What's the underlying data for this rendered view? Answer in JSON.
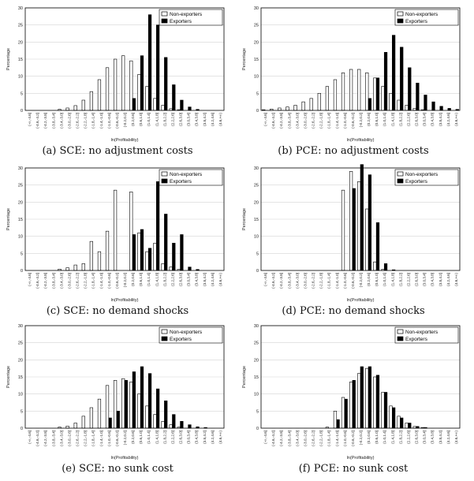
{
  "legend": {
    "nonexporters": "Non-exporters",
    "exporters": "Exporters"
  },
  "xlabel": "ln(Profitability)",
  "ylabel": "Percentage",
  "chart_data": [
    {
      "type": "bar",
      "caption": "(a) SCE: no adjustment costs",
      "categories": [
        "(-∞,-4.6]",
        "(-4.6,-4.2]",
        "(-4.2,-3.8]",
        "(-3.8,-3.4]",
        "(-3.4,-3.0]",
        "(-3.0,-2.6]",
        "(-2.6,-2.2]",
        "(-2.2,-1.8]",
        "(-1.8,-1.4]",
        "(-1.4,-1.0]",
        "(-1.0,-0.6]",
        "(-0.6,-0.2]",
        "(-0.2,0.2]",
        "(0.2,0.6]",
        "(0.6,1.0]",
        "(1.0,1.4]",
        "(1.4,1.8]",
        "(1.8,2.2]",
        "(2.2,2.6]",
        "(2.6,3.0]",
        "(3.0,3.4]",
        "(3.4,3.8]",
        "(3.8,4.2]",
        "(4.2,4.6]",
        "(4.6,+∞)"
      ],
      "ylim": [
        0,
        30
      ],
      "legend_position": "top-right",
      "series": [
        {
          "name": "Non-exporters",
          "values": [
            0,
            0,
            0,
            0,
            0.3,
            0.7,
            1.4,
            3,
            5.5,
            9,
            12.5,
            15,
            16,
            14.5,
            10.5,
            7,
            3.5,
            1.5,
            0.5,
            0.2,
            0,
            0,
            0,
            0,
            0
          ]
        },
        {
          "name": "Exporters",
          "values": [
            0,
            0,
            0,
            0,
            0,
            0,
            0,
            0,
            0,
            0,
            0,
            0,
            0,
            3.5,
            16,
            28,
            25,
            15.5,
            7.5,
            3,
            1,
            0.3,
            0,
            0,
            0
          ]
        }
      ]
    },
    {
      "type": "bar",
      "caption": "(b) PCE: no adjustment costs",
      "categories": [
        "(-∞,-4.6]",
        "(-4.6,-4.2]",
        "(-4.2,-3.8]",
        "(-3.8,-3.4]",
        "(-3.4,-3.0]",
        "(-3.0,-2.6]",
        "(-2.6,-2.2]",
        "(-2.2,-1.8]",
        "(-1.8,-1.4]",
        "(-1.4,-1.0]",
        "(-1.0,-0.6]",
        "(-0.6,-0.2]",
        "(-0.2,0.2]",
        "(0.2,0.6]",
        "(0.6,1.0]",
        "(1.0,1.4]",
        "(1.4,1.8]",
        "(1.8,2.2]",
        "(2.2,2.6]",
        "(2.6,3.0]",
        "(3.0,3.4]",
        "(3.4,3.8]",
        "(3.8,4.2]",
        "(4.2,4.6]",
        "(4.6,+∞)"
      ],
      "ylim": [
        0,
        30
      ],
      "legend_position": "top-right",
      "series": [
        {
          "name": "Non-exporters",
          "values": [
            0.2,
            0.4,
            0.7,
            1,
            1.5,
            2.5,
            3.5,
            5,
            7,
            9,
            11,
            12,
            12,
            11,
            9.5,
            7,
            5,
            3,
            1.5,
            0.6,
            0.2,
            0,
            0,
            0,
            0
          ]
        },
        {
          "name": "Exporters",
          "values": [
            0,
            0,
            0,
            0,
            0,
            0,
            0,
            0,
            0,
            0,
            0,
            0,
            0,
            3.5,
            9.5,
            17,
            22,
            18.5,
            12.5,
            8,
            4.5,
            2.5,
            1.2,
            0.6,
            0.3
          ]
        }
      ]
    },
    {
      "type": "bar",
      "caption": "(c) SCE: no demand shocks",
      "categories": [
        "(-∞,-4.6]",
        "(-4.6,-4.2]",
        "(-4.2,-3.8]",
        "(-3.8,-3.4]",
        "(-3.4,-3.0]",
        "(-3.0,-2.6]",
        "(-2.6,-2.2]",
        "(-2.2,-1.8]",
        "(-1.8,-1.4]",
        "(-1.4,-1.0]",
        "(-1.0,-0.6]",
        "(-0.6,-0.2]",
        "(-0.2,0.2]",
        "(0.2,0.6]",
        "(0.6,1.0]",
        "(1.0,1.4]",
        "(1.4,1.8]",
        "(1.8,2.2]",
        "(2.2,2.6]",
        "(2.6,3.0]",
        "(3.0,3.4]",
        "(3.4,3.8]",
        "(3.8,4.2]",
        "(4.2,4.6]",
        "(4.6,+∞)"
      ],
      "ylim": [
        0,
        30
      ],
      "legend_position": "top-right",
      "series": [
        {
          "name": "Non-exporters",
          "values": [
            0,
            0,
            0,
            0,
            0.4,
            0.8,
            1.6,
            2,
            8.5,
            5.5,
            11.5,
            23.5,
            0,
            23,
            11,
            5.5,
            8,
            2,
            1,
            0.3,
            0,
            0,
            0,
            0,
            0
          ]
        },
        {
          "name": "Exporters",
          "values": [
            0,
            0,
            0,
            0,
            0,
            0,
            0,
            0,
            0,
            0,
            0,
            0,
            0,
            10.5,
            12,
            6.5,
            26,
            16.5,
            8,
            10.5,
            1,
            0.3,
            0,
            0,
            0
          ]
        }
      ]
    },
    {
      "type": "bar",
      "caption": "(d) PCE: no demand shocks",
      "categories": [
        "(-∞,-4.6]",
        "(-4.6,-4.2]",
        "(-4.2,-3.8]",
        "(-3.8,-3.4]",
        "(-3.4,-3.0]",
        "(-3.0,-2.6]",
        "(-2.6,-2.2]",
        "(-2.2,-1.8]",
        "(-1.8,-1.4]",
        "(-1.4,-1.0]",
        "(-1.0,-0.6]",
        "(-0.6,-0.2]",
        "(-0.2,0.2]",
        "(0.2,0.6]",
        "(0.6,1.0]",
        "(1.0,1.4]",
        "(1.4,1.8]",
        "(1.8,2.2]",
        "(2.2,2.6]",
        "(2.6,3.0]",
        "(3.0,3.4]",
        "(3.4,3.8]",
        "(3.8,4.2]",
        "(4.2,4.6]",
        "(4.6,+∞)"
      ],
      "ylim": [
        0,
        30
      ],
      "legend_position": "top-right",
      "series": [
        {
          "name": "Non-exporters",
          "values": [
            0,
            0,
            0,
            0,
            0,
            0,
            0,
            0,
            0,
            0,
            23.5,
            29,
            26,
            18,
            2.5,
            0.3,
            0,
            0,
            0,
            0,
            0,
            0,
            0,
            0,
            0
          ]
        },
        {
          "name": "Exporters",
          "values": [
            0,
            0,
            0,
            0,
            0,
            0,
            0,
            0,
            0,
            0,
            0,
            24,
            31,
            28,
            14,
            2,
            0.2,
            0,
            0,
            0,
            0,
            0,
            0,
            0,
            0
          ]
        }
      ]
    },
    {
      "type": "bar",
      "caption": "(e) SCE: no sunk cost",
      "categories": [
        "(-∞,-4.6]",
        "(-4.6,-4.2]",
        "(-4.2,-3.8]",
        "(-3.8,-3.4]",
        "(-3.4,-3.0]",
        "(-3.0,-2.6]",
        "(-2.6,-2.2]",
        "(-2.2,-1.8]",
        "(-1.8,-1.4]",
        "(-1.4,-1.0]",
        "(-1.0,-0.6]",
        "(-0.6,-0.2]",
        "(-0.2,0.2]",
        "(0.2,0.6]",
        "(0.6,1.0]",
        "(1.0,1.4]",
        "(1.4,1.8]",
        "(1.8,2.2]",
        "(2.2,2.6]",
        "(2.6,3.0]",
        "(3.0,3.4]",
        "(3.4,3.8]",
        "(3.8,4.2]",
        "(4.2,4.6]",
        "(4.6,+∞)"
      ],
      "ylim": [
        0,
        30
      ],
      "legend_position": "top-right",
      "series": [
        {
          "name": "Non-exporters",
          "values": [
            0,
            0,
            0,
            0,
            0.3,
            0.6,
            1.5,
            3.5,
            6,
            8.5,
            12.5,
            14,
            14.5,
            13.5,
            10,
            6.5,
            4,
            2,
            1,
            0.3,
            0,
            0,
            0,
            0,
            0
          ]
        },
        {
          "name": "Exporters",
          "values": [
            0,
            0,
            0,
            0,
            0,
            0,
            0,
            0,
            0,
            0,
            3,
            5,
            14,
            16.5,
            18,
            16,
            11.5,
            8,
            4,
            2,
            1,
            0.4,
            0.2,
            0,
            0
          ]
        }
      ]
    },
    {
      "type": "bar",
      "caption": "(f) PCE: no sunk cost",
      "categories": [
        "(-∞,-4.6]",
        "(-4.6,-4.2]",
        "(-4.2,-3.8]",
        "(-3.8,-3.4]",
        "(-3.4,-3.0]",
        "(-3.0,-2.6]",
        "(-2.6,-2.2]",
        "(-2.2,-1.8]",
        "(-1.8,-1.4]",
        "(-1.4,-1.0]",
        "(-1.0,-0.6]",
        "(-0.6,-0.2]",
        "(-0.2,0.2]",
        "(0.2,0.6]",
        "(0.6,1.0]",
        "(1.0,1.4]",
        "(1.4,1.8]",
        "(1.8,2.2]",
        "(2.2,2.6]",
        "(2.6,3.0]",
        "(3.0,3.4]",
        "(3.4,3.8]",
        "(3.8,4.2]",
        "(4.2,4.6]",
        "(4.6,+∞)"
      ],
      "ylim": [
        0,
        30
      ],
      "legend_position": "top-right",
      "series": [
        {
          "name": "Non-exporters",
          "values": [
            0,
            0,
            0,
            0,
            0,
            0,
            0,
            0,
            0.3,
            5,
            9,
            13.5,
            16,
            17.5,
            15,
            10.5,
            6.5,
            3.5,
            1.5,
            0.5,
            0.2,
            0,
            0,
            0,
            0
          ]
        },
        {
          "name": "Exporters",
          "values": [
            0,
            0,
            0,
            0,
            0,
            0,
            0,
            0,
            0,
            2.5,
            8.5,
            14,
            18,
            18,
            15.5,
            10.5,
            6,
            3,
            1.5,
            0.5,
            0.2,
            0,
            0,
            0,
            0
          ]
        }
      ]
    }
  ]
}
